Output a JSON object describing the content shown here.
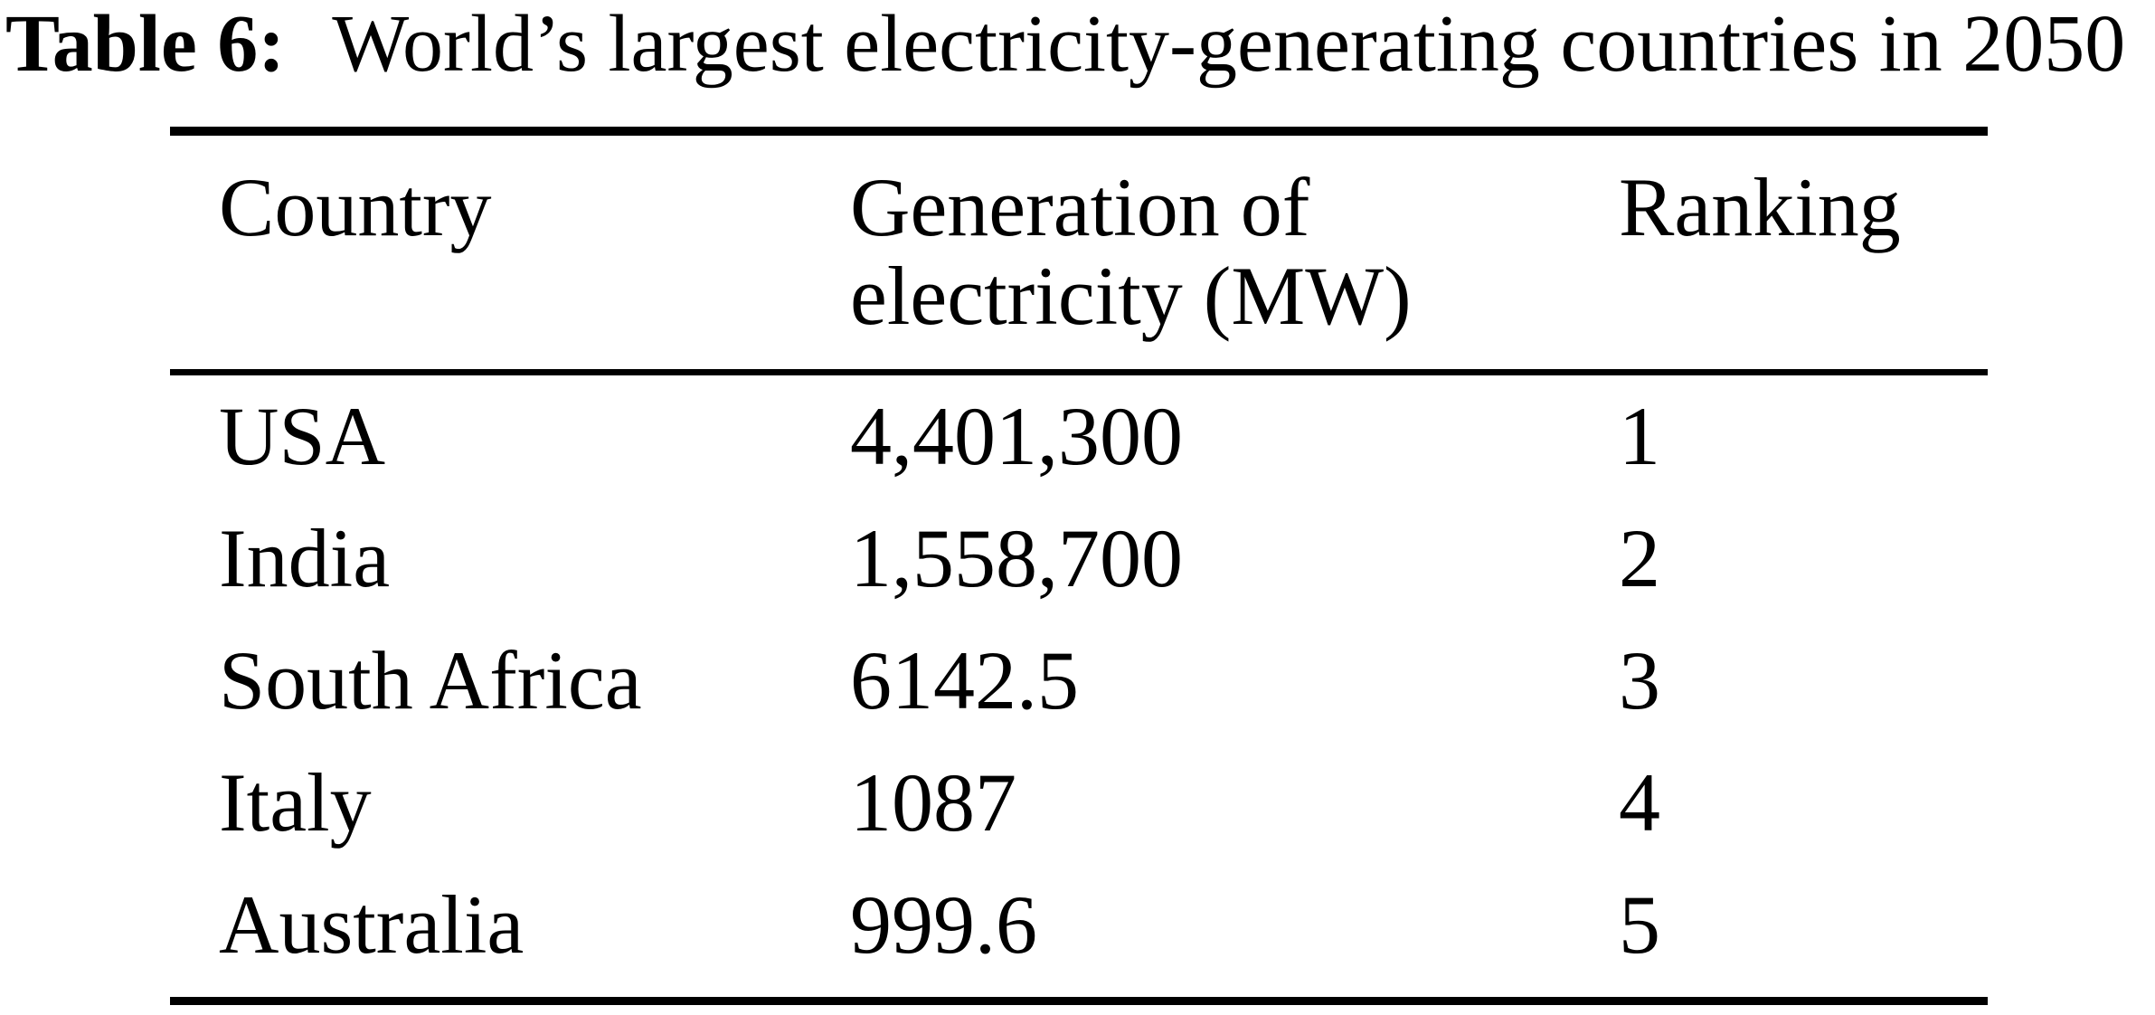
{
  "page": {
    "background_color": "#ffffff",
    "text_color": "#000000"
  },
  "caption": {
    "label": "Table 6:",
    "text": "World’s largest electricity-generating countries in 2050"
  },
  "table": {
    "header": {
      "country": "Country",
      "generation_line1": "Generation of",
      "generation_line2": "electricity (MW)",
      "ranking": "Ranking"
    },
    "rows": [
      {
        "country": "USA",
        "generation_mw": "4,401,300",
        "ranking": "1"
      },
      {
        "country": "India",
        "generation_mw": "1,558,700",
        "ranking": "2"
      },
      {
        "country": "South Africa",
        "generation_mw": "6142.5",
        "ranking": "3"
      },
      {
        "country": "Italy",
        "generation_mw": "1087",
        "ranking": "4"
      },
      {
        "country": "Australia",
        "generation_mw": "999.6",
        "ranking": "5"
      }
    ]
  },
  "chart_data": {
    "type": "table",
    "title": "Table 6: World’s largest electricity-generating countries in 2050",
    "columns": [
      "Country",
      "Generation of electricity (MW)",
      "Ranking"
    ],
    "rows": [
      [
        "USA",
        "4,401,300",
        "1"
      ],
      [
        "India",
        "1,558,700",
        "2"
      ],
      [
        "South Africa",
        "6142.5",
        "3"
      ],
      [
        "Italy",
        "1087",
        "4"
      ],
      [
        "Australia",
        "999.6",
        "5"
      ]
    ]
  }
}
